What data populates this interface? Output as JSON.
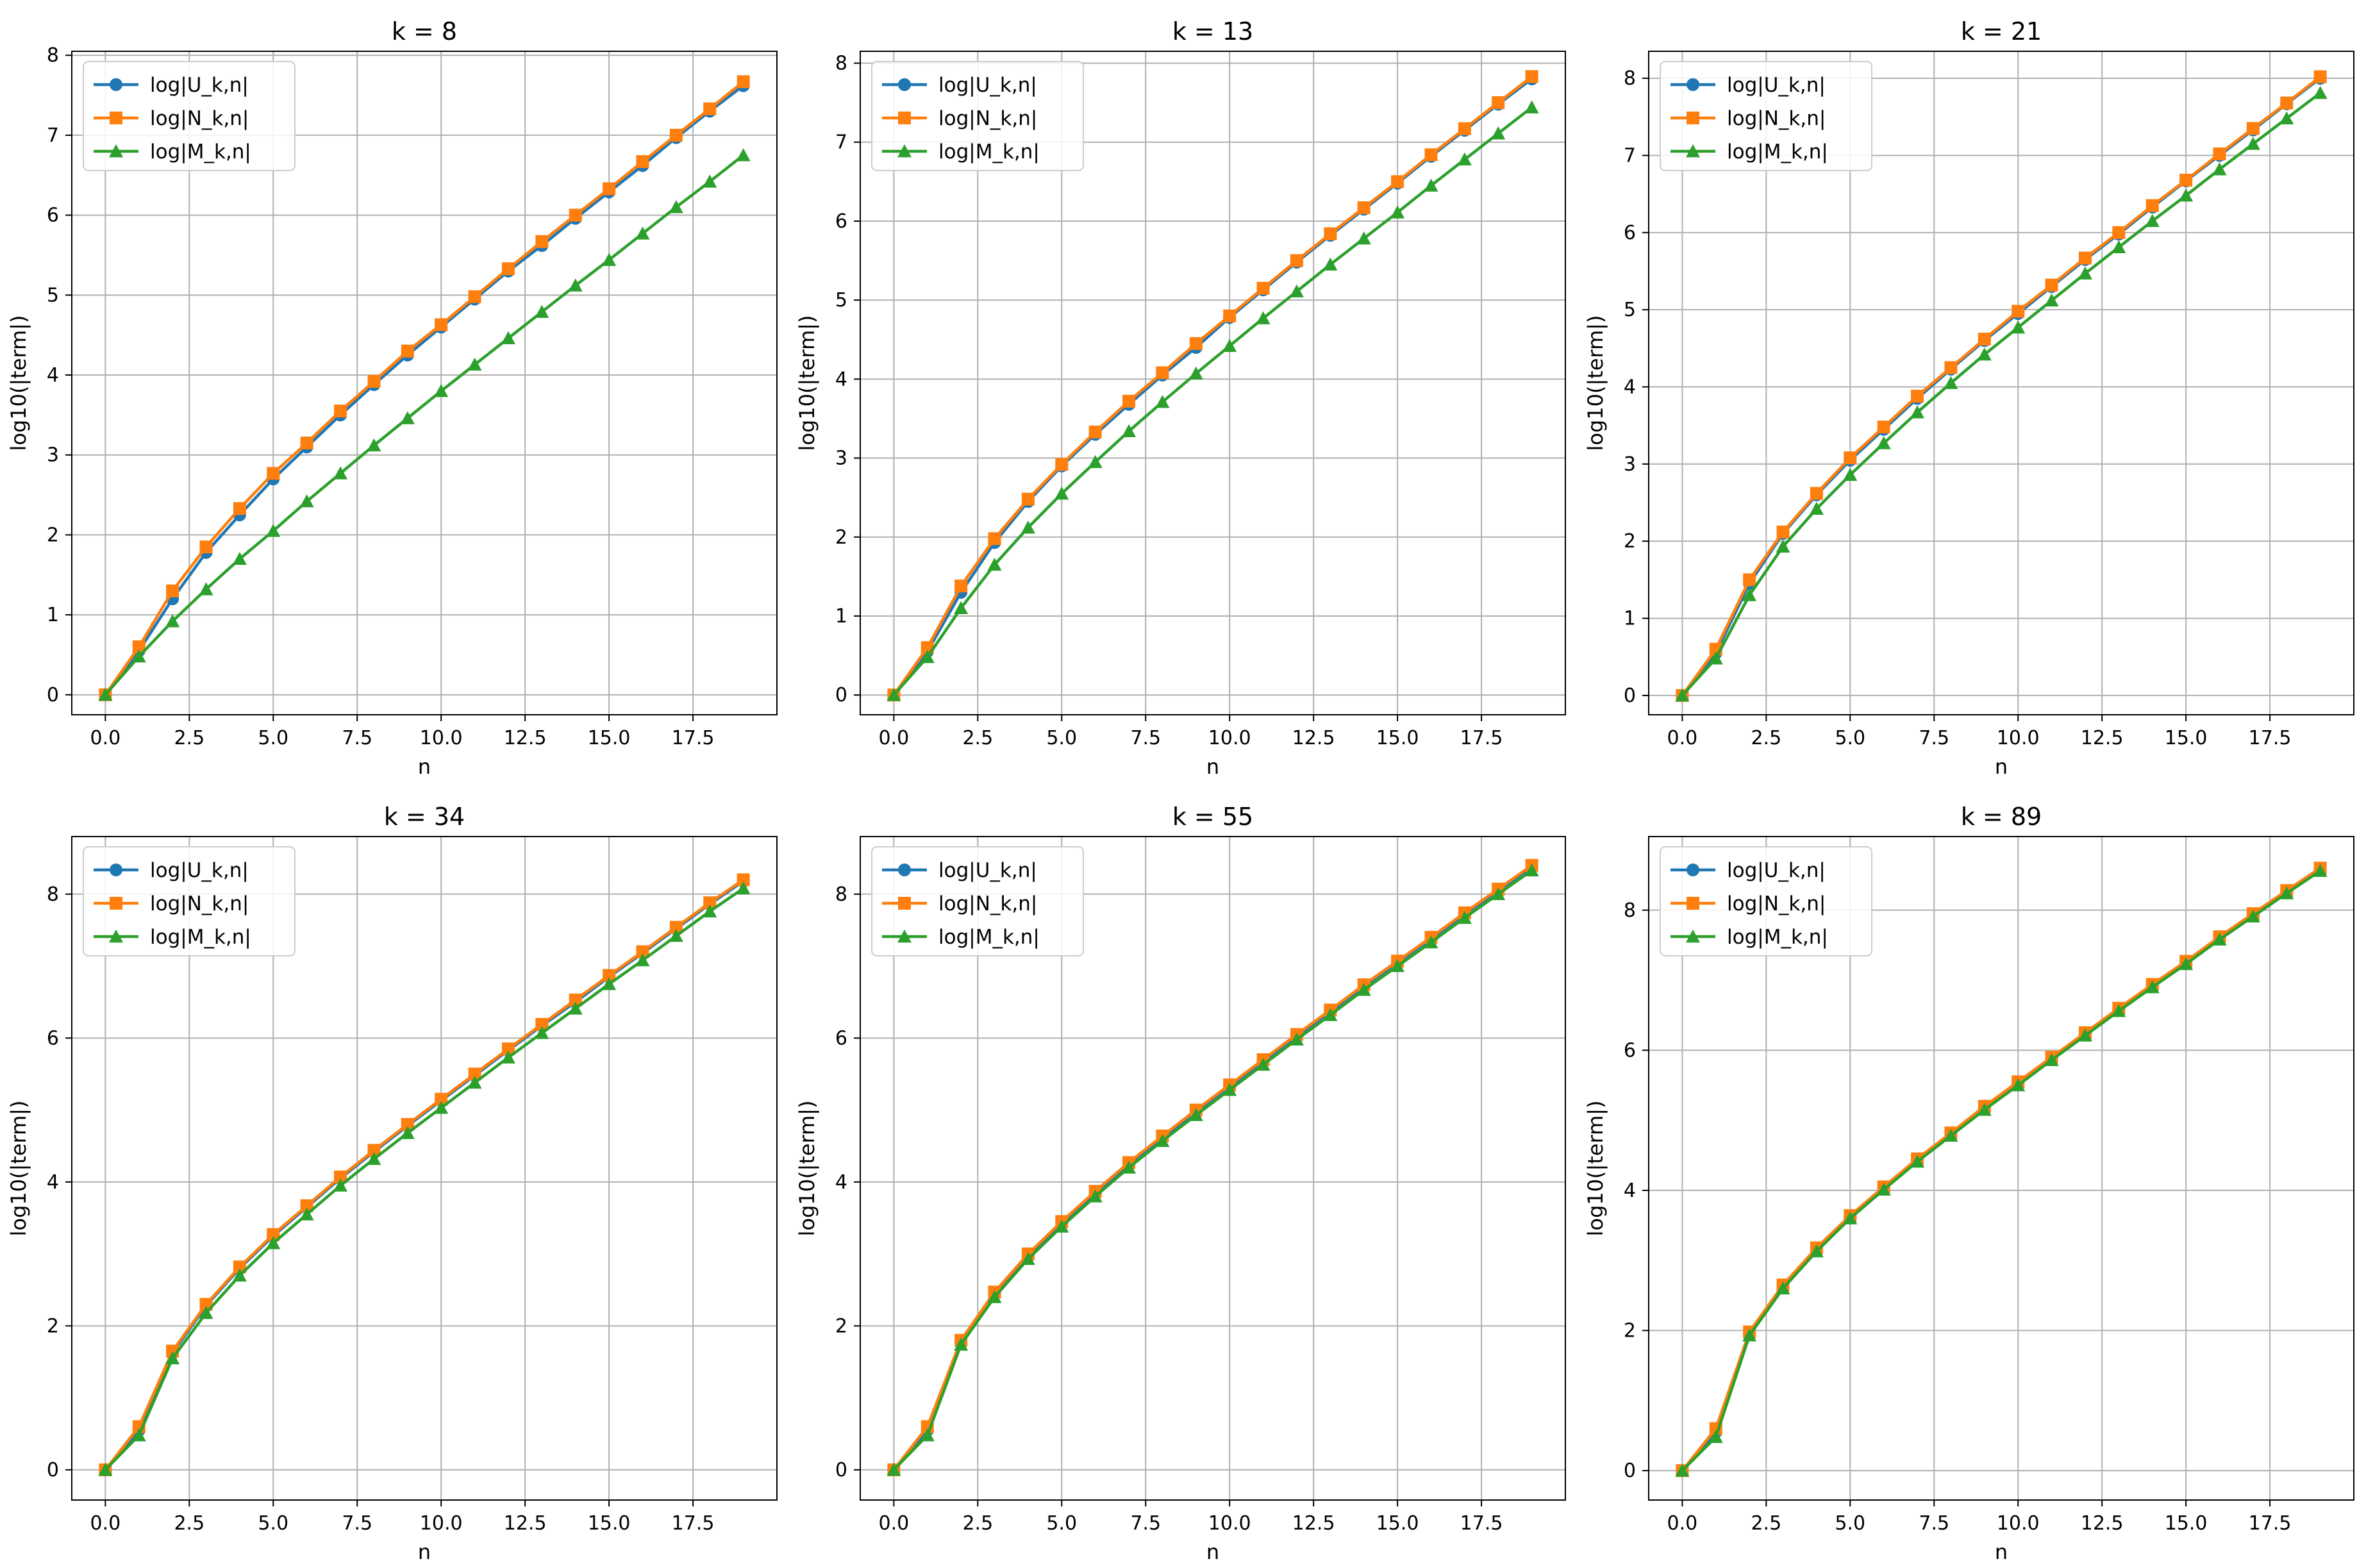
{
  "figure": {
    "panel_count": 6,
    "series_colors": {
      "U": "#1f77b4",
      "N": "#ff7f0e",
      "M": "#2ca02c"
    }
  },
  "chart_data": [
    {
      "type": "line",
      "title": "k = 8",
      "xlabel": "n",
      "ylabel": "log10(|term|)",
      "x": [
        0,
        1,
        2,
        3,
        4,
        5,
        6,
        7,
        8,
        9,
        10,
        11,
        12,
        13,
        14,
        15,
        16,
        17,
        18,
        19
      ],
      "xlim": [
        -1,
        20
      ],
      "ylim": [
        -0.25,
        8.05
      ],
      "xticks": [
        0,
        2.5,
        5,
        7.5,
        10,
        12.5,
        15,
        17.5
      ],
      "xtick_labels": [
        "0.0",
        "2.5",
        "5.0",
        "7.5",
        "10.0",
        "12.5",
        "15.0",
        "17.5"
      ],
      "yticks": [
        0,
        1,
        2,
        3,
        4,
        5,
        6,
        7,
        8
      ],
      "ytick_labels": [
        "0",
        "1",
        "2",
        "3",
        "4",
        "5",
        "6",
        "7",
        "8"
      ],
      "grid": true,
      "legend_position": "upper-left",
      "series": [
        {
          "name": "log|U_k,n|",
          "marker": "circle",
          "color": "#1f77b4",
          "values": [
            0,
            0.55,
            1.2,
            1.78,
            2.25,
            2.7,
            3.1,
            3.5,
            3.88,
            4.25,
            4.6,
            4.95,
            5.3,
            5.62,
            5.96,
            6.29,
            6.62,
            6.97,
            7.3,
            7.62
          ]
        },
        {
          "name": "log|N_k,n|",
          "marker": "square",
          "color": "#ff7f0e",
          "values": [
            0,
            0.6,
            1.3,
            1.85,
            2.33,
            2.77,
            3.15,
            3.55,
            3.92,
            4.3,
            4.63,
            4.98,
            5.33,
            5.67,
            6.0,
            6.33,
            6.67,
            7.0,
            7.33,
            7.67
          ]
        },
        {
          "name": "log|M_k,n|",
          "marker": "triangle",
          "color": "#2ca02c",
          "values": [
            0,
            0.48,
            0.92,
            1.32,
            1.7,
            2.05,
            2.42,
            2.77,
            3.12,
            3.46,
            3.8,
            4.13,
            4.46,
            4.79,
            5.12,
            5.44,
            5.77,
            6.1,
            6.42,
            6.75
          ]
        }
      ]
    },
    {
      "type": "line",
      "title": "k = 13",
      "xlabel": "n",
      "ylabel": "log10(|term|)",
      "x": [
        0,
        1,
        2,
        3,
        4,
        5,
        6,
        7,
        8,
        9,
        10,
        11,
        12,
        13,
        14,
        15,
        16,
        17,
        18,
        19
      ],
      "xlim": [
        -1,
        20
      ],
      "ylim": [
        -0.25,
        8.15
      ],
      "xticks": [
        0,
        2.5,
        5,
        7.5,
        10,
        12.5,
        15,
        17.5
      ],
      "xtick_labels": [
        "0.0",
        "2.5",
        "5.0",
        "7.5",
        "10.0",
        "12.5",
        "15.0",
        "17.5"
      ],
      "yticks": [
        0,
        1,
        2,
        3,
        4,
        5,
        6,
        7,
        8
      ],
      "ytick_labels": [
        "0",
        "1",
        "2",
        "3",
        "4",
        "5",
        "6",
        "7",
        "8"
      ],
      "grid": true,
      "legend_position": "upper-left",
      "series": [
        {
          "name": "log|U_k,n|",
          "marker": "circle",
          "color": "#1f77b4",
          "values": [
            0,
            0.55,
            1.3,
            1.93,
            2.45,
            2.9,
            3.3,
            3.68,
            4.05,
            4.4,
            4.78,
            5.13,
            5.48,
            5.82,
            6.15,
            6.48,
            6.82,
            7.15,
            7.48,
            7.8
          ]
        },
        {
          "name": "log|N_k,n|",
          "marker": "square",
          "color": "#ff7f0e",
          "values": [
            0,
            0.6,
            1.38,
            1.98,
            2.48,
            2.92,
            3.33,
            3.72,
            4.08,
            4.45,
            4.8,
            5.15,
            5.5,
            5.84,
            6.17,
            6.5,
            6.84,
            7.17,
            7.5,
            7.83
          ]
        },
        {
          "name": "log|M_k,n|",
          "marker": "triangle",
          "color": "#2ca02c",
          "values": [
            0,
            0.48,
            1.1,
            1.65,
            2.12,
            2.55,
            2.95,
            3.34,
            3.71,
            4.07,
            4.42,
            4.77,
            5.11,
            5.45,
            5.78,
            6.11,
            6.45,
            6.78,
            7.11,
            7.44
          ]
        }
      ]
    },
    {
      "type": "line",
      "title": "k = 21",
      "xlabel": "n",
      "ylabel": "log10(|term|)",
      "x": [
        0,
        1,
        2,
        3,
        4,
        5,
        6,
        7,
        8,
        9,
        10,
        11,
        12,
        13,
        14,
        15,
        16,
        17,
        18,
        19
      ],
      "xlim": [
        -1,
        20
      ],
      "ylim": [
        -0.25,
        8.35
      ],
      "xticks": [
        0,
        2.5,
        5,
        7.5,
        10,
        12.5,
        15,
        17.5
      ],
      "xtick_labels": [
        "0.0",
        "2.5",
        "5.0",
        "7.5",
        "10.0",
        "12.5",
        "15.0",
        "17.5"
      ],
      "yticks": [
        0,
        1,
        2,
        3,
        4,
        5,
        6,
        7,
        8
      ],
      "ytick_labels": [
        "0",
        "1",
        "2",
        "3",
        "4",
        "5",
        "6",
        "7",
        "8"
      ],
      "grid": true,
      "legend_position": "upper-left",
      "series": [
        {
          "name": "log|U_k,n|",
          "marker": "circle",
          "color": "#1f77b4",
          "values": [
            0,
            0.55,
            1.45,
            2.1,
            2.6,
            3.05,
            3.45,
            3.85,
            4.23,
            4.6,
            4.95,
            5.3,
            5.65,
            5.98,
            6.33,
            6.67,
            7.0,
            7.33,
            7.67,
            8.0
          ]
        },
        {
          "name": "log|N_k,n|",
          "marker": "square",
          "color": "#ff7f0e",
          "values": [
            0,
            0.6,
            1.5,
            2.12,
            2.62,
            3.08,
            3.48,
            3.88,
            4.25,
            4.62,
            4.98,
            5.32,
            5.67,
            6.0,
            6.35,
            6.68,
            7.02,
            7.35,
            7.68,
            8.02
          ]
        },
        {
          "name": "log|M_k,n|",
          "marker": "triangle",
          "color": "#2ca02c",
          "values": [
            0,
            0.48,
            1.3,
            1.93,
            2.42,
            2.86,
            3.27,
            3.67,
            4.05,
            4.42,
            4.77,
            5.12,
            5.47,
            5.81,
            6.15,
            6.48,
            6.82,
            7.15,
            7.48,
            7.81
          ]
        }
      ]
    },
    {
      "type": "line",
      "title": "k = 34",
      "xlabel": "n",
      "ylabel": "log10(|term|)",
      "x": [
        0,
        1,
        2,
        3,
        4,
        5,
        6,
        7,
        8,
        9,
        10,
        11,
        12,
        13,
        14,
        15,
        16,
        17,
        18,
        19
      ],
      "xlim": [
        -1,
        20
      ],
      "ylim": [
        -0.42,
        8.8
      ],
      "xticks": [
        0,
        2.5,
        5,
        7.5,
        10,
        12.5,
        15,
        17.5
      ],
      "xtick_labels": [
        "0.0",
        "2.5",
        "5.0",
        "7.5",
        "10.0",
        "12.5",
        "15.0",
        "17.5"
      ],
      "yticks": [
        0,
        2,
        4,
        6,
        8
      ],
      "ytick_labels": [
        "0",
        "2",
        "4",
        "6",
        "8"
      ],
      "grid": true,
      "legend_position": "upper-left",
      "series": [
        {
          "name": "log|U_k,n|",
          "marker": "circle",
          "color": "#1f77b4",
          "values": [
            0,
            0.55,
            1.62,
            2.28,
            2.8,
            3.25,
            3.65,
            4.05,
            4.42,
            4.78,
            5.13,
            5.48,
            5.83,
            6.17,
            6.5,
            6.85,
            7.18,
            7.52,
            7.86,
            8.18
          ]
        },
        {
          "name": "log|N_k,n|",
          "marker": "square",
          "color": "#ff7f0e",
          "values": [
            0,
            0.6,
            1.65,
            2.3,
            2.82,
            3.27,
            3.67,
            4.07,
            4.44,
            4.8,
            5.15,
            5.5,
            5.85,
            6.19,
            6.53,
            6.87,
            7.2,
            7.54,
            7.88,
            8.2
          ]
        },
        {
          "name": "log|M_k,n|",
          "marker": "triangle",
          "color": "#2ca02c",
          "values": [
            0,
            0.48,
            1.55,
            2.18,
            2.7,
            3.15,
            3.55,
            3.95,
            4.32,
            4.68,
            5.03,
            5.38,
            5.73,
            6.07,
            6.41,
            6.75,
            7.08,
            7.42,
            7.76,
            8.08
          ]
        }
      ]
    },
    {
      "type": "line",
      "title": "k = 55",
      "xlabel": "n",
      "ylabel": "log10(|term|)",
      "x": [
        0,
        1,
        2,
        3,
        4,
        5,
        6,
        7,
        8,
        9,
        10,
        11,
        12,
        13,
        14,
        15,
        16,
        17,
        18,
        19
      ],
      "xlim": [
        -1,
        20
      ],
      "ylim": [
        -0.42,
        8.8
      ],
      "xticks": [
        0,
        2.5,
        5,
        7.5,
        10,
        12.5,
        15,
        17.5
      ],
      "xtick_labels": [
        "0.0",
        "2.5",
        "5.0",
        "7.5",
        "10.0",
        "12.5",
        "15.0",
        "17.5"
      ],
      "yticks": [
        0,
        2,
        4,
        6,
        8
      ],
      "ytick_labels": [
        "0",
        "2",
        "4",
        "6",
        "8"
      ],
      "grid": true,
      "legend_position": "upper-left",
      "series": [
        {
          "name": "log|U_k,n|",
          "marker": "circle",
          "color": "#1f77b4",
          "values": [
            0,
            0.55,
            1.78,
            2.45,
            2.98,
            3.43,
            3.85,
            4.25,
            4.62,
            4.98,
            5.33,
            5.68,
            6.03,
            6.37,
            6.72,
            7.05,
            7.38,
            7.72,
            8.05,
            8.38
          ]
        },
        {
          "name": "log|N_k,n|",
          "marker": "square",
          "color": "#ff7f0e",
          "values": [
            0,
            0.6,
            1.8,
            2.47,
            3.0,
            3.45,
            3.87,
            4.27,
            4.64,
            5.0,
            5.35,
            5.7,
            6.05,
            6.39,
            6.74,
            7.07,
            7.4,
            7.74,
            8.07,
            8.4
          ]
        },
        {
          "name": "log|M_k,n|",
          "marker": "triangle",
          "color": "#2ca02c",
          "values": [
            0,
            0.48,
            1.74,
            2.4,
            2.93,
            3.38,
            3.8,
            4.2,
            4.57,
            4.93,
            5.28,
            5.63,
            5.98,
            6.32,
            6.67,
            7.0,
            7.33,
            7.67,
            8.0,
            8.33
          ]
        }
      ]
    },
    {
      "type": "line",
      "title": "k = 89",
      "xlabel": "n",
      "ylabel": "log10(|term|)",
      "x": [
        0,
        1,
        2,
        3,
        4,
        5,
        6,
        7,
        8,
        9,
        10,
        11,
        12,
        13,
        14,
        15,
        16,
        17,
        18,
        19
      ],
      "xlim": [
        -1,
        20
      ],
      "ylim": [
        -0.42,
        9.05
      ],
      "xticks": [
        0,
        2.5,
        5,
        7.5,
        10,
        12.5,
        15,
        17.5
      ],
      "xtick_labels": [
        "0.0",
        "2.5",
        "5.0",
        "7.5",
        "10.0",
        "12.5",
        "15.0",
        "17.5"
      ],
      "yticks": [
        0,
        2,
        4,
        6,
        8
      ],
      "ytick_labels": [
        "0",
        "2",
        "4",
        "6",
        "8"
      ],
      "grid": true,
      "legend_position": "upper-left",
      "series": [
        {
          "name": "log|U_k,n|",
          "marker": "circle",
          "color": "#1f77b4",
          "values": [
            0,
            0.55,
            1.95,
            2.62,
            3.15,
            3.62,
            4.03,
            4.43,
            4.8,
            5.17,
            5.53,
            5.88,
            6.23,
            6.58,
            6.92,
            7.25,
            7.6,
            7.93,
            8.27,
            8.58
          ]
        },
        {
          "name": "log|N_k,n|",
          "marker": "square",
          "color": "#ff7f0e",
          "values": [
            0,
            0.6,
            1.98,
            2.65,
            3.18,
            3.64,
            4.05,
            4.45,
            4.82,
            5.2,
            5.55,
            5.9,
            6.25,
            6.6,
            6.94,
            7.27,
            7.62,
            7.95,
            8.28,
            8.6
          ]
        },
        {
          "name": "log|M_k,n|",
          "marker": "triangle",
          "color": "#2ca02c",
          "values": [
            0,
            0.48,
            1.93,
            2.6,
            3.13,
            3.6,
            4.01,
            4.41,
            4.78,
            5.15,
            5.5,
            5.86,
            6.21,
            6.56,
            6.9,
            7.23,
            7.58,
            7.91,
            8.24,
            8.56
          ]
        }
      ]
    }
  ]
}
